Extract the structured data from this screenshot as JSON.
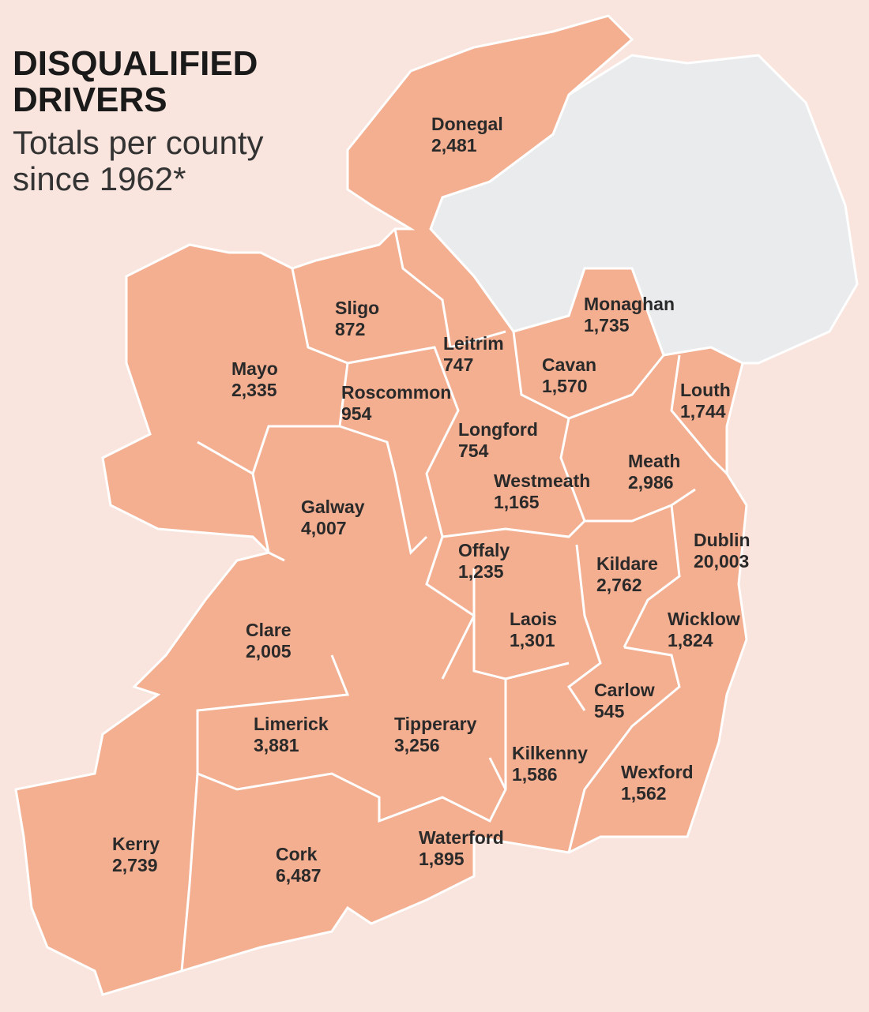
{
  "title": "DISQUALIFIED DRIVERS",
  "subtitle": "Totals per county since 1962*",
  "counties": [
    {
      "name": "Donegal",
      "total": "2,481"
    },
    {
      "name": "Sligo",
      "total": "872"
    },
    {
      "name": "Mayo",
      "total": "2,335"
    },
    {
      "name": "Roscommon",
      "total": "954"
    },
    {
      "name": "Leitrim",
      "total": "747"
    },
    {
      "name": "Longford",
      "total": "754"
    },
    {
      "name": "Cavan",
      "total": "1,570"
    },
    {
      "name": "Monaghan",
      "total": "1,735"
    },
    {
      "name": "Louth",
      "total": "1,744"
    },
    {
      "name": "Meath",
      "total": "2,986"
    },
    {
      "name": "Westmeath",
      "total": "1,165"
    },
    {
      "name": "Galway",
      "total": "4,007"
    },
    {
      "name": "Offaly",
      "total": "1,235"
    },
    {
      "name": "Kildare",
      "total": "2,762"
    },
    {
      "name": "Dublin",
      "total": "20,003"
    },
    {
      "name": "Laois",
      "total": "1,301"
    },
    {
      "name": "Wicklow",
      "total": "1,824"
    },
    {
      "name": "Clare",
      "total": "2,005"
    },
    {
      "name": "Carlow",
      "total": "545"
    },
    {
      "name": "Limerick",
      "total": "3,881"
    },
    {
      "name": "Tipperary",
      "total": "3,256"
    },
    {
      "name": "Kilkenny",
      "total": "1,586"
    },
    {
      "name": "Wexford",
      "total": "1,562"
    },
    {
      "name": "Kerry",
      "total": "2,739"
    },
    {
      "name": "Cork",
      "total": "6,487"
    },
    {
      "name": "Waterford",
      "total": "1,895"
    }
  ]
}
